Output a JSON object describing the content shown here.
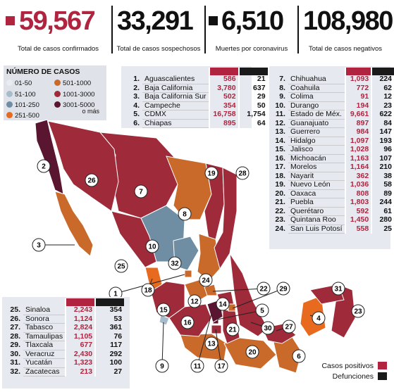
{
  "header": [
    {
      "value": "59,567",
      "caption": "Total de casos confirmados",
      "color": "#b0243f",
      "square": true
    },
    {
      "value": "33,291",
      "caption": "Total de casos sospechosos",
      "color": "#111111",
      "square": false
    },
    {
      "value": "6,510",
      "caption": "Muertes por coronavirus",
      "color": "#111111",
      "square": true
    },
    {
      "value": "108,980",
      "caption": "Total de casos negativos",
      "color": "#111111",
      "square": false
    }
  ],
  "legend": {
    "title": "NÚMERO DE CASOS",
    "items": [
      {
        "label": "01-50",
        "color": "#e9edf2"
      },
      {
        "label": "51-100",
        "color": "#a6bccd"
      },
      {
        "label": "101-250",
        "color": "#6f8ea4"
      },
      {
        "label": "251-500",
        "color": "#e86a1e"
      },
      {
        "label": "501-1000",
        "color": "#c96a2b"
      },
      {
        "label": "1001-3000",
        "color": "#9e2a3a"
      },
      {
        "label": "3001-5000",
        "color": "#5a1530"
      }
    ],
    "suffix": "o más"
  },
  "key": {
    "positive_label": "Casos positivos",
    "deaths_label": "Defunciones",
    "positive_color": "#b0243f",
    "deaths_color": "#1a1a1a"
  },
  "chart_data": {
    "type": "table",
    "columns": [
      "Casos positivos",
      "Defunciones"
    ],
    "rows": [
      {
        "n": "1.",
        "state": "Aguascalientes",
        "cases": 586,
        "deaths": 21
      },
      {
        "n": "2.",
        "state": "Baja California",
        "cases": 3780,
        "deaths": 637
      },
      {
        "n": "3.",
        "state": "Baja California Sur",
        "cases": 502,
        "deaths": 29
      },
      {
        "n": "4.",
        "state": "Campeche",
        "cases": 354,
        "deaths": 50
      },
      {
        "n": "5.",
        "state": "CDMX",
        "cases": 16758,
        "deaths": 1754
      },
      {
        "n": "6.",
        "state": "Chiapas",
        "cases": 895,
        "deaths": 64
      },
      {
        "n": "7.",
        "state": "Chihuahua",
        "cases": 1093,
        "deaths": 224
      },
      {
        "n": "8.",
        "state": "Coahuila",
        "cases": 772,
        "deaths": 62
      },
      {
        "n": "9.",
        "state": "Colima",
        "cases": 91,
        "deaths": 12
      },
      {
        "n": "10.",
        "state": "Durango",
        "cases": 194,
        "deaths": 23
      },
      {
        "n": "11.",
        "state": "Estado de Méx.",
        "cases": 9661,
        "deaths": 622
      },
      {
        "n": "12.",
        "state": "Guanajuato",
        "cases": 897,
        "deaths": 84
      },
      {
        "n": "13.",
        "state": "Guerrero",
        "cases": 984,
        "deaths": 147
      },
      {
        "n": "14.",
        "state": "Hidalgo",
        "cases": 1097,
        "deaths": 193
      },
      {
        "n": "15.",
        "state": "Jalisco",
        "cases": 1028,
        "deaths": 96
      },
      {
        "n": "16.",
        "state": "Michoacán",
        "cases": 1163,
        "deaths": 107
      },
      {
        "n": "17.",
        "state": "Morelos",
        "cases": 1164,
        "deaths": 210
      },
      {
        "n": "18.",
        "state": "Nayarit",
        "cases": 362,
        "deaths": 38
      },
      {
        "n": "19.",
        "state": "Nuevo León",
        "cases": 1036,
        "deaths": 58
      },
      {
        "n": "20.",
        "state": "Oaxaca",
        "cases": 808,
        "deaths": 89
      },
      {
        "n": "21.",
        "state": "Puebla",
        "cases": 1803,
        "deaths": 244
      },
      {
        "n": "22.",
        "state": "Querétaro",
        "cases": 592,
        "deaths": 61
      },
      {
        "n": "23.",
        "state": "Quintana Roo",
        "cases": 1450,
        "deaths": 280
      },
      {
        "n": "24.",
        "state": "San Luis Potosí",
        "cases": 558,
        "deaths": 25
      },
      {
        "n": "25.",
        "state": "Sinaloa",
        "cases": 2243,
        "deaths": 354
      },
      {
        "n": "26.",
        "state": "Sonora",
        "cases": 1124,
        "deaths": 53
      },
      {
        "n": "27.",
        "state": "Tabasco",
        "cases": 2824,
        "deaths": 361
      },
      {
        "n": "28.",
        "state": "Tamaulipas",
        "cases": 1105,
        "deaths": 76
      },
      {
        "n": "29.",
        "state": "Tlaxcala",
        "cases": 677,
        "deaths": 117
      },
      {
        "n": "30.",
        "state": "Veracruz",
        "cases": 2430,
        "deaths": 292
      },
      {
        "n": "31.",
        "state": "Yucatán",
        "cases": 1323,
        "deaths": 100
      },
      {
        "n": "32.",
        "state": "Zacatecas",
        "cases": 213,
        "deaths": 27
      }
    ]
  },
  "map_labels": [
    "1",
    "2",
    "3",
    "4",
    "5",
    "6",
    "7",
    "8",
    "9",
    "10",
    "11",
    "12",
    "13",
    "14",
    "15",
    "16",
    "17",
    "18",
    "19",
    "20",
    "21",
    "22",
    "23",
    "24",
    "25",
    "26",
    "27",
    "28",
    "29",
    "30",
    "31",
    "32"
  ]
}
